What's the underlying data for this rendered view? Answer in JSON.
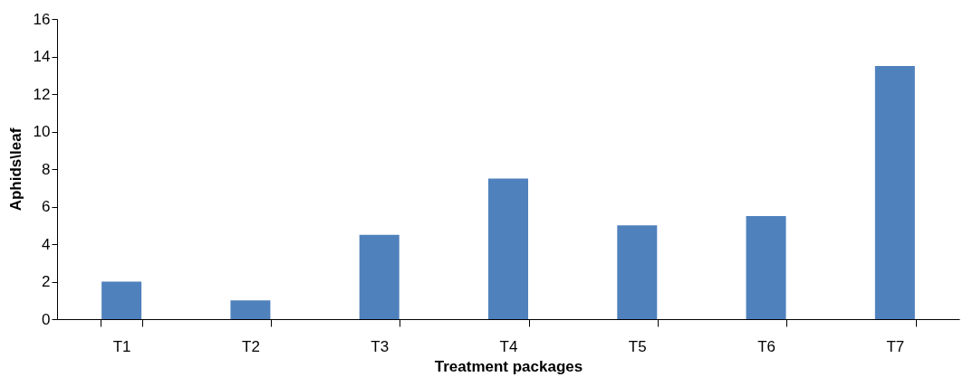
{
  "chart_data": {
    "type": "bar",
    "xlabel": "Treatment packages",
    "ylabel": "Aphids\\leaf",
    "categories": [
      "T1",
      "T2",
      "T3",
      "T4",
      "T5",
      "T6",
      "T7"
    ],
    "values": [
      2,
      1,
      4.5,
      7.5,
      5,
      5.5,
      13.5
    ],
    "color": "#4f81bd",
    "ylim": [
      0,
      16
    ],
    "yticks": [
      0,
      2,
      4,
      6,
      8,
      10,
      12,
      14,
      16
    ],
    "grid": false
  }
}
